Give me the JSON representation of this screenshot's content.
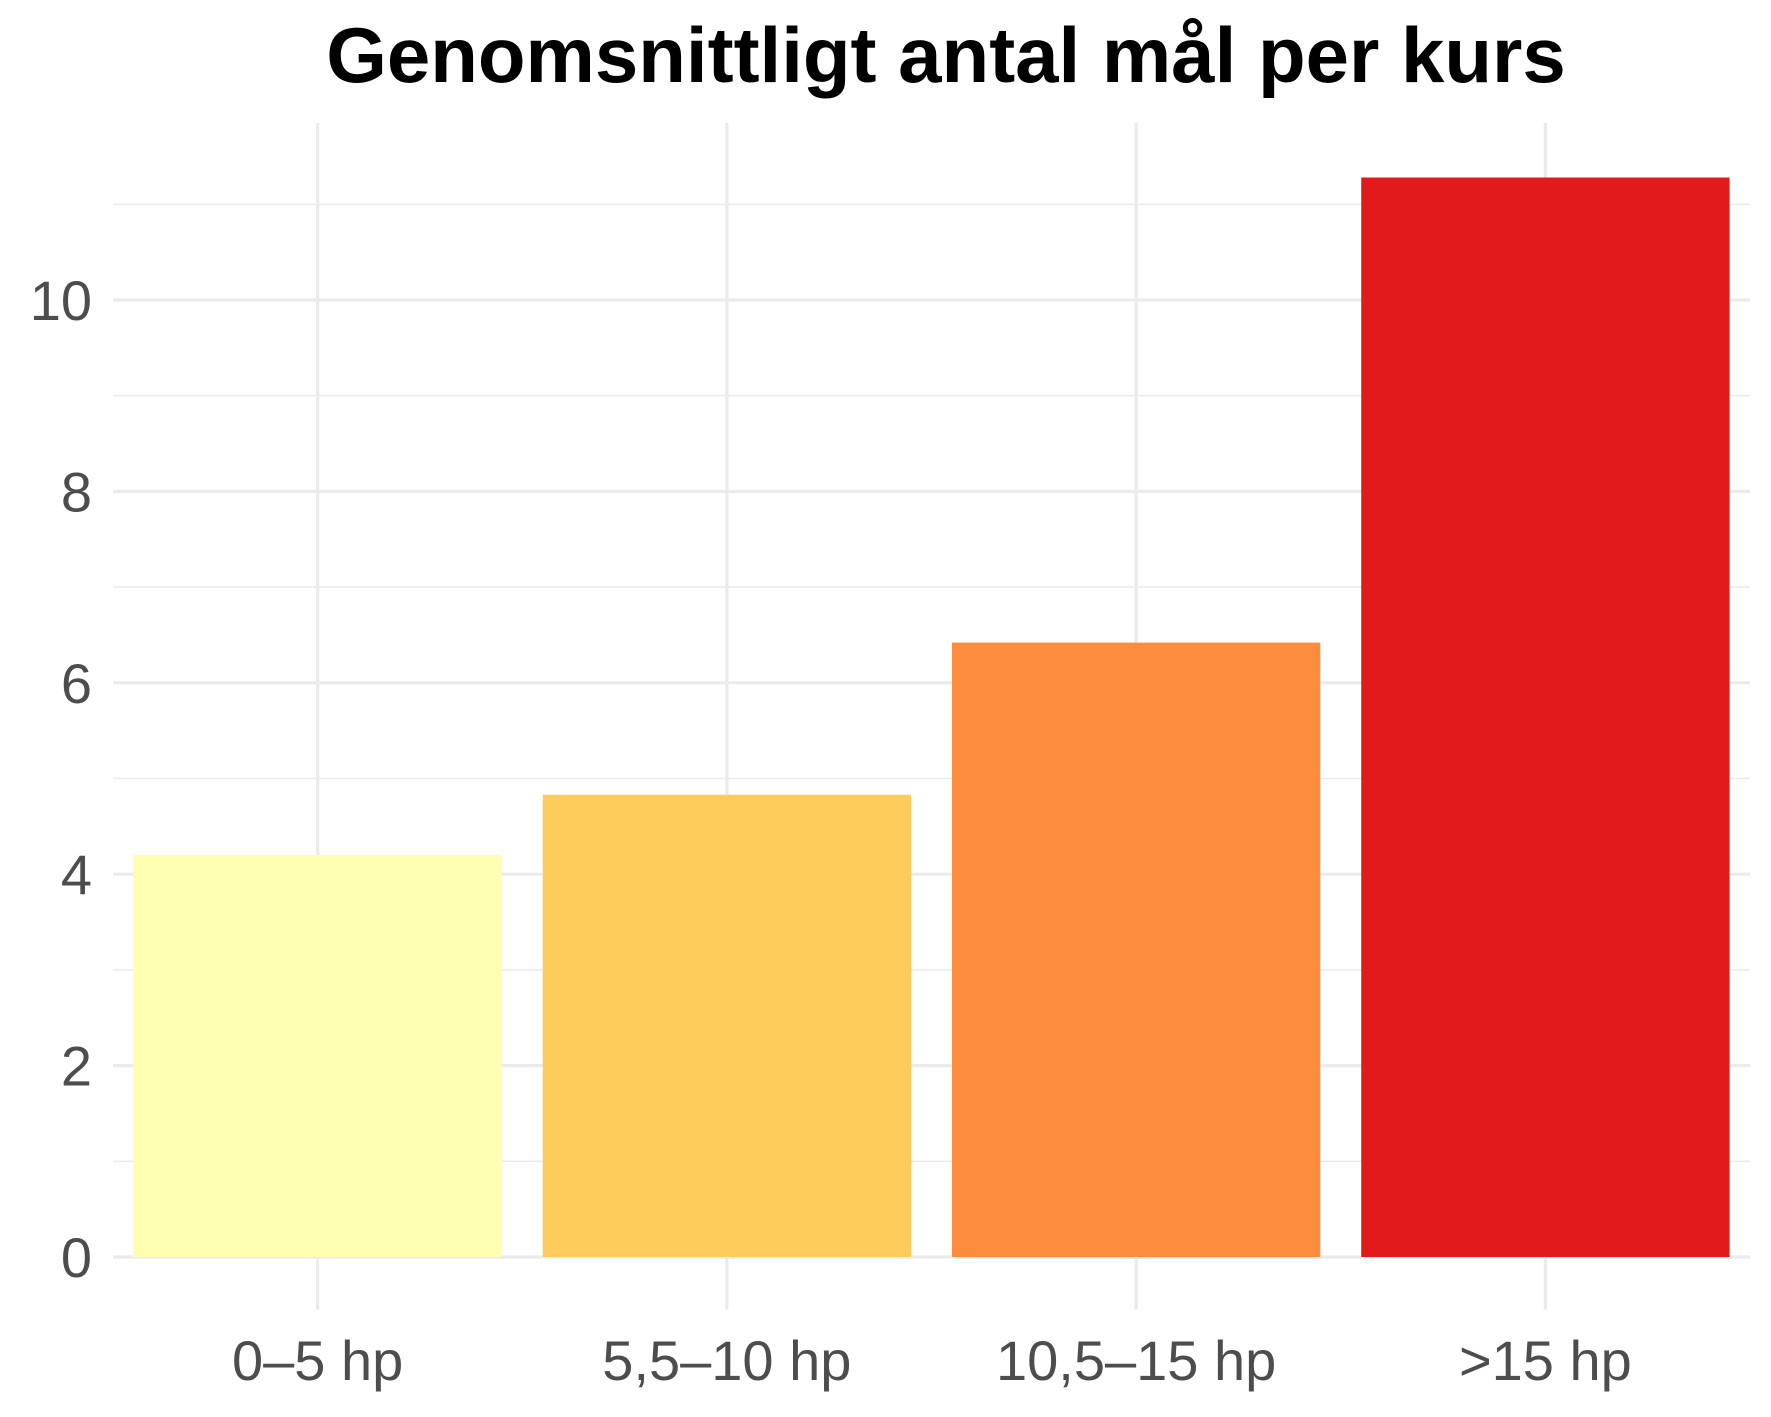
{
  "chart_data": {
    "type": "bar",
    "title": "Genomsnittligt antal mål per kurs",
    "xlabel": "",
    "ylabel": "",
    "categories": [
      "0–5 hp",
      "5,5–10 hp",
      "10,5–15 hp",
      ">15 hp"
    ],
    "values": [
      4.2,
      4.83,
      6.42,
      11.28
    ],
    "colors": [
      "#FFFFB2",
      "#FECC5C",
      "#FD8D3C",
      "#E31A1C"
    ],
    "ylim": [
      -0.55,
      11.85
    ],
    "yticks": [
      0,
      2,
      4,
      6,
      8,
      10
    ],
    "yticks_minor": [
      1,
      3,
      5,
      7,
      9,
      11
    ],
    "grid": true,
    "legend": "none"
  }
}
